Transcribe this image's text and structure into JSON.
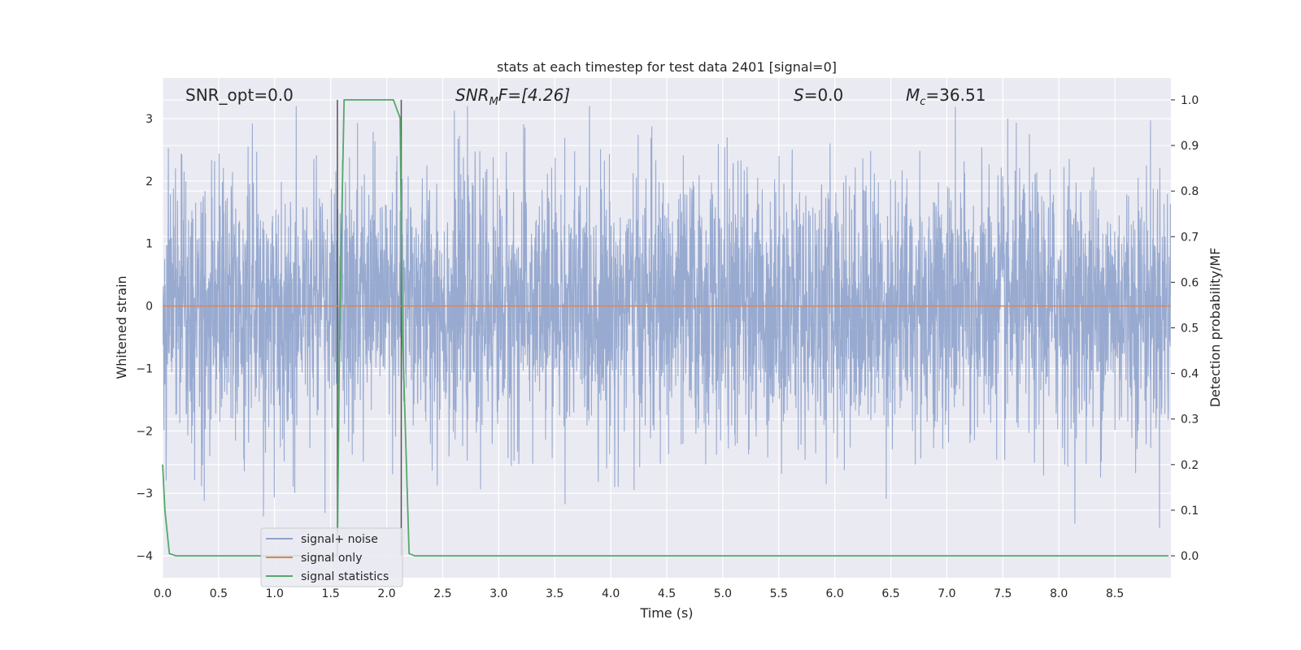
{
  "chart_data": {
    "type": "line",
    "title": "stats at each timestep for test data 2401 [signal=0]",
    "xlabel": "Time (s)",
    "ylabel": "Whitened strain",
    "y2label": "Detection probability/MF",
    "xlim": [
      0,
      9.0
    ],
    "ylim": [
      -4.35,
      3.65
    ],
    "y2lim": [
      -0.048,
      1.048
    ],
    "x_ticks": [
      "0.0",
      "0.5",
      "1.0",
      "1.5",
      "2.0",
      "2.5",
      "3.0",
      "3.5",
      "4.0",
      "4.5",
      "5.0",
      "5.5",
      "6.0",
      "6.5",
      "7.0",
      "7.5",
      "8.0",
      "8.5"
    ],
    "x_tick_values": [
      0,
      0.5,
      1,
      1.5,
      2,
      2.5,
      3,
      3.5,
      4,
      4.5,
      5,
      5.5,
      6,
      6.5,
      7,
      7.5,
      8,
      8.5
    ],
    "y_ticks": [
      "−4",
      "−3",
      "−2",
      "−1",
      "0",
      "1",
      "2",
      "3"
    ],
    "y_tick_values": [
      -4,
      -3,
      -2,
      -1,
      0,
      1,
      2,
      3
    ],
    "y2_ticks": [
      "0.0",
      "0.1",
      "0.2",
      "0.3",
      "0.4",
      "0.5",
      "0.6",
      "0.7",
      "0.8",
      "0.9",
      "1.0"
    ],
    "y2_tick_values": [
      0,
      0.1,
      0.2,
      0.3,
      0.4,
      0.5,
      0.6,
      0.7,
      0.8,
      0.9,
      1.0
    ],
    "grid": true,
    "legend_position": "lower-left",
    "annotations": {
      "snr_opt": "SNR_opt=0.0",
      "snr_mf_base": "SNR",
      "snr_mf_sub": "M",
      "snr_mf_rest": "F=[4.26]",
      "s_italic": "S",
      "s_rest": "=0.0",
      "mc_italic": "M",
      "mc_sub": "c",
      "mc_rest": "=36.51"
    },
    "vlines": [
      1.56,
      2.13
    ],
    "series": [
      {
        "name": "signal+ noise",
        "color": "#8fa3cc",
        "noise_band": {
          "typical_min": -1.8,
          "typical_max": 1.8,
          "extreme_min": -4.0,
          "extreme_max": 3.2
        }
      },
      {
        "name": "signal only",
        "color": "#dd8452",
        "x": [
          0,
          9.0
        ],
        "y": [
          0,
          0
        ]
      },
      {
        "name": "signal statistics",
        "color": "#55a868",
        "axis": "right",
        "x": [
          0,
          0.02,
          0.06,
          0.12,
          0.2,
          1.5,
          1.56,
          1.58,
          1.62,
          1.8,
          2.0,
          2.06,
          2.12,
          2.14,
          2.2,
          2.25,
          8.98
        ],
        "y": [
          0.2,
          0.1,
          0.005,
          0.0,
          0.0,
          0.0,
          0.0,
          0.5,
          1.0,
          1.0,
          1.0,
          1.0,
          0.96,
          0.5,
          0.005,
          0.0,
          0.0
        ]
      }
    ]
  }
}
